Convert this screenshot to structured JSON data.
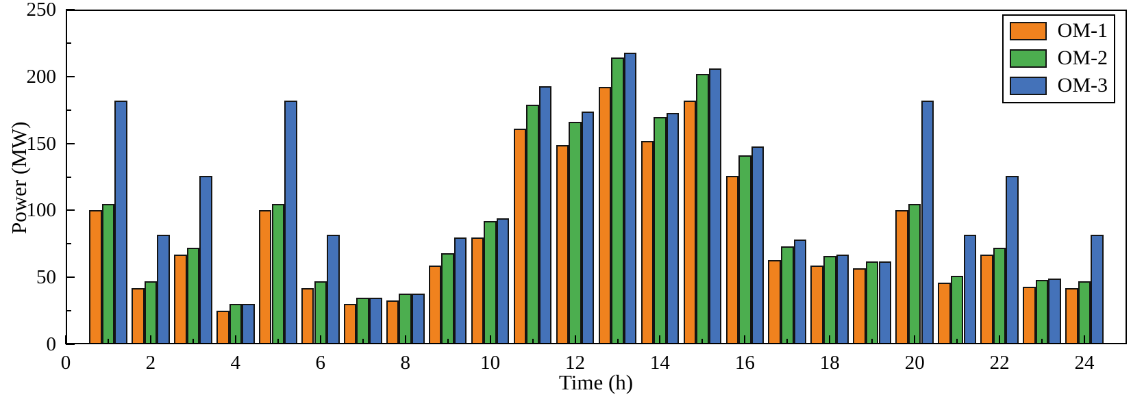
{
  "chart_data": {
    "type": "bar",
    "title": "",
    "xlabel": "Time (h)",
    "ylabel": "Power (MW)",
    "x": [
      1,
      2,
      3,
      4,
      5,
      6,
      7,
      8,
      9,
      10,
      11,
      12,
      13,
      14,
      15,
      16,
      17,
      18,
      19,
      20,
      21,
      22,
      23,
      24
    ],
    "series": [
      {
        "name": "OM-1",
        "color": "#F0821E",
        "values": [
          100,
          42,
          67,
          25,
          100,
          42,
          30,
          33,
          59,
          80,
          161,
          149,
          192,
          152,
          182,
          126,
          63,
          59,
          57,
          100,
          46,
          67,
          43,
          42
        ]
      },
      {
        "name": "OM-2",
        "color": "#4CAE4F",
        "values": [
          105,
          47,
          72,
          30,
          105,
          47,
          35,
          38,
          68,
          92,
          179,
          166,
          214,
          170,
          202,
          141,
          73,
          66,
          62,
          105,
          51,
          72,
          48,
          47
        ]
      },
      {
        "name": "OM-3",
        "color": "#4472B9",
        "values": [
          182,
          82,
          126,
          30,
          182,
          82,
          35,
          38,
          80,
          94,
          193,
          174,
          218,
          173,
          206,
          148,
          78,
          67,
          62,
          182,
          82,
          126,
          49,
          82
        ]
      }
    ],
    "xlim": [
      0,
      25
    ],
    "ylim": [
      0,
      250
    ],
    "x_major_ticks": [
      0,
      2,
      4,
      6,
      8,
      10,
      12,
      14,
      16,
      18,
      20,
      22,
      24
    ],
    "x_minor_step": 1,
    "y_major_ticks": [
      0,
      50,
      100,
      150,
      200,
      250
    ],
    "y_minor_step": 25,
    "bar_width": 0.3,
    "bar_edge_color": "#141414",
    "grid": "off",
    "tick_direction": "in",
    "legend_position": "top-right"
  }
}
